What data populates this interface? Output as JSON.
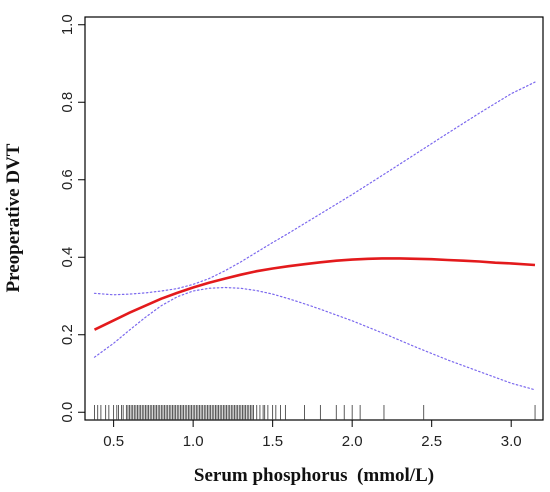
{
  "chart_data": {
    "type": "line",
    "xlabel": "Serum phosphorus  (mmol/L)",
    "ylabel": "Preoperative DVT",
    "xlim": [
      0.32,
      3.2
    ],
    "ylim": [
      -0.02,
      1.02
    ],
    "x_ticks": [
      0.5,
      1.0,
      1.5,
      2.0,
      2.5,
      3.0
    ],
    "x_tick_labels": [
      "0.5",
      "1.0",
      "1.5",
      "2.0",
      "2.5",
      "3.0"
    ],
    "y_ticks": [
      0.0,
      0.2,
      0.4,
      0.6,
      0.8,
      1.0
    ],
    "y_tick_labels": [
      "0.0",
      "0.2",
      "0.4",
      "0.6",
      "0.8",
      "1.0"
    ],
    "grid": false,
    "legend": "none",
    "series": [
      {
        "role": "estimate",
        "color": "#e31a1c",
        "style": "solid",
        "x": [
          0.38,
          0.5,
          0.6,
          0.7,
          0.8,
          0.9,
          1.0,
          1.1,
          1.2,
          1.3,
          1.4,
          1.5,
          1.6,
          1.7,
          1.8,
          1.9,
          2.0,
          2.1,
          2.2,
          2.3,
          2.4,
          2.5,
          2.6,
          2.7,
          2.8,
          2.9,
          3.0,
          3.15
        ],
        "y": [
          0.213,
          0.237,
          0.257,
          0.275,
          0.293,
          0.308,
          0.322,
          0.334,
          0.345,
          0.355,
          0.364,
          0.371,
          0.377,
          0.382,
          0.387,
          0.391,
          0.394,
          0.396,
          0.397,
          0.397,
          0.396,
          0.395,
          0.393,
          0.391,
          0.389,
          0.386,
          0.384,
          0.38
        ]
      },
      {
        "role": "upper-ci",
        "color": "#7b68ee",
        "style": "dotted",
        "x": [
          0.38,
          0.5,
          0.6,
          0.7,
          0.8,
          0.9,
          1.0,
          1.1,
          1.2,
          1.3,
          1.4,
          1.5,
          1.6,
          1.7,
          1.8,
          1.9,
          2.0,
          2.2,
          2.4,
          2.6,
          2.8,
          3.0,
          3.15
        ],
        "y": [
          0.307,
          0.303,
          0.305,
          0.308,
          0.313,
          0.319,
          0.33,
          0.345,
          0.365,
          0.388,
          0.413,
          0.438,
          0.462,
          0.487,
          0.512,
          0.537,
          0.562,
          0.614,
          0.667,
          0.72,
          0.772,
          0.822,
          0.852
        ]
      },
      {
        "role": "lower-ci",
        "color": "#7b68ee",
        "style": "dotted",
        "x": [
          0.38,
          0.5,
          0.6,
          0.7,
          0.8,
          0.9,
          1.0,
          1.1,
          1.2,
          1.3,
          1.4,
          1.5,
          1.6,
          1.7,
          1.8,
          1.9,
          2.0,
          2.2,
          2.4,
          2.6,
          2.8,
          3.0,
          3.15
        ],
        "y": [
          0.142,
          0.178,
          0.212,
          0.245,
          0.275,
          0.298,
          0.313,
          0.32,
          0.322,
          0.32,
          0.314,
          0.305,
          0.293,
          0.28,
          0.266,
          0.251,
          0.236,
          0.203,
          0.168,
          0.135,
          0.105,
          0.075,
          0.058
        ]
      }
    ],
    "rug": [
      0.38,
      0.4,
      0.42,
      0.45,
      0.47,
      0.5,
      0.52,
      0.53,
      0.55,
      0.56,
      0.58,
      0.59,
      0.6,
      0.61,
      0.62,
      0.63,
      0.64,
      0.65,
      0.66,
      0.67,
      0.68,
      0.69,
      0.7,
      0.71,
      0.72,
      0.73,
      0.74,
      0.75,
      0.76,
      0.77,
      0.78,
      0.79,
      0.8,
      0.81,
      0.82,
      0.83,
      0.84,
      0.85,
      0.86,
      0.87,
      0.88,
      0.89,
      0.9,
      0.91,
      0.92,
      0.93,
      0.94,
      0.95,
      0.96,
      0.97,
      0.98,
      0.99,
      1.0,
      1.01,
      1.02,
      1.03,
      1.04,
      1.05,
      1.06,
      1.07,
      1.08,
      1.09,
      1.1,
      1.11,
      1.12,
      1.13,
      1.14,
      1.15,
      1.16,
      1.17,
      1.18,
      1.19,
      1.2,
      1.21,
      1.22,
      1.23,
      1.24,
      1.25,
      1.26,
      1.27,
      1.28,
      1.29,
      1.3,
      1.31,
      1.32,
      1.33,
      1.34,
      1.35,
      1.36,
      1.37,
      1.38,
      1.4,
      1.42,
      1.44,
      1.45,
      1.47,
      1.5,
      1.52,
      1.55,
      1.58,
      1.7,
      1.8,
      1.9,
      1.95,
      2.0,
      2.05,
      2.2,
      2.45,
      3.15
    ]
  }
}
